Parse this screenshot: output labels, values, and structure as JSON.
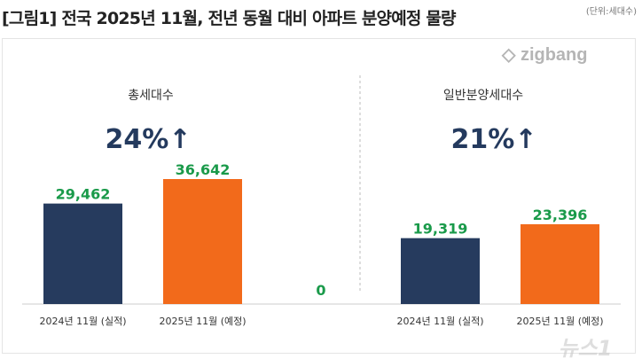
{
  "title": "[그림1] 전국 2025년 11월, 전년 동월 대비 아파트 분양예정 물량",
  "unit": "(단위:세대수)",
  "logo": "zigbang",
  "watermark": "뉴스1",
  "colors": {
    "navy": "#263b5e",
    "orange": "#f26a1b",
    "green": "#1a9a4a"
  },
  "chart_data": {
    "type": "bar",
    "categories": [
      "2024년 11월 (실적)",
      "2025년 11월 (예정)"
    ],
    "groups": [
      {
        "title": "총세대수",
        "change": "24%↑",
        "values": [
          29462,
          36642
        ],
        "labels": [
          "29,462",
          "36,642"
        ]
      },
      {
        "title": "일반분양세대수",
        "change": "21%↑",
        "values": [
          19319,
          23396
        ],
        "labels": [
          "19,319",
          "23,396"
        ]
      }
    ],
    "extra_label": "0",
    "ylim": [
      0,
      37000
    ]
  }
}
